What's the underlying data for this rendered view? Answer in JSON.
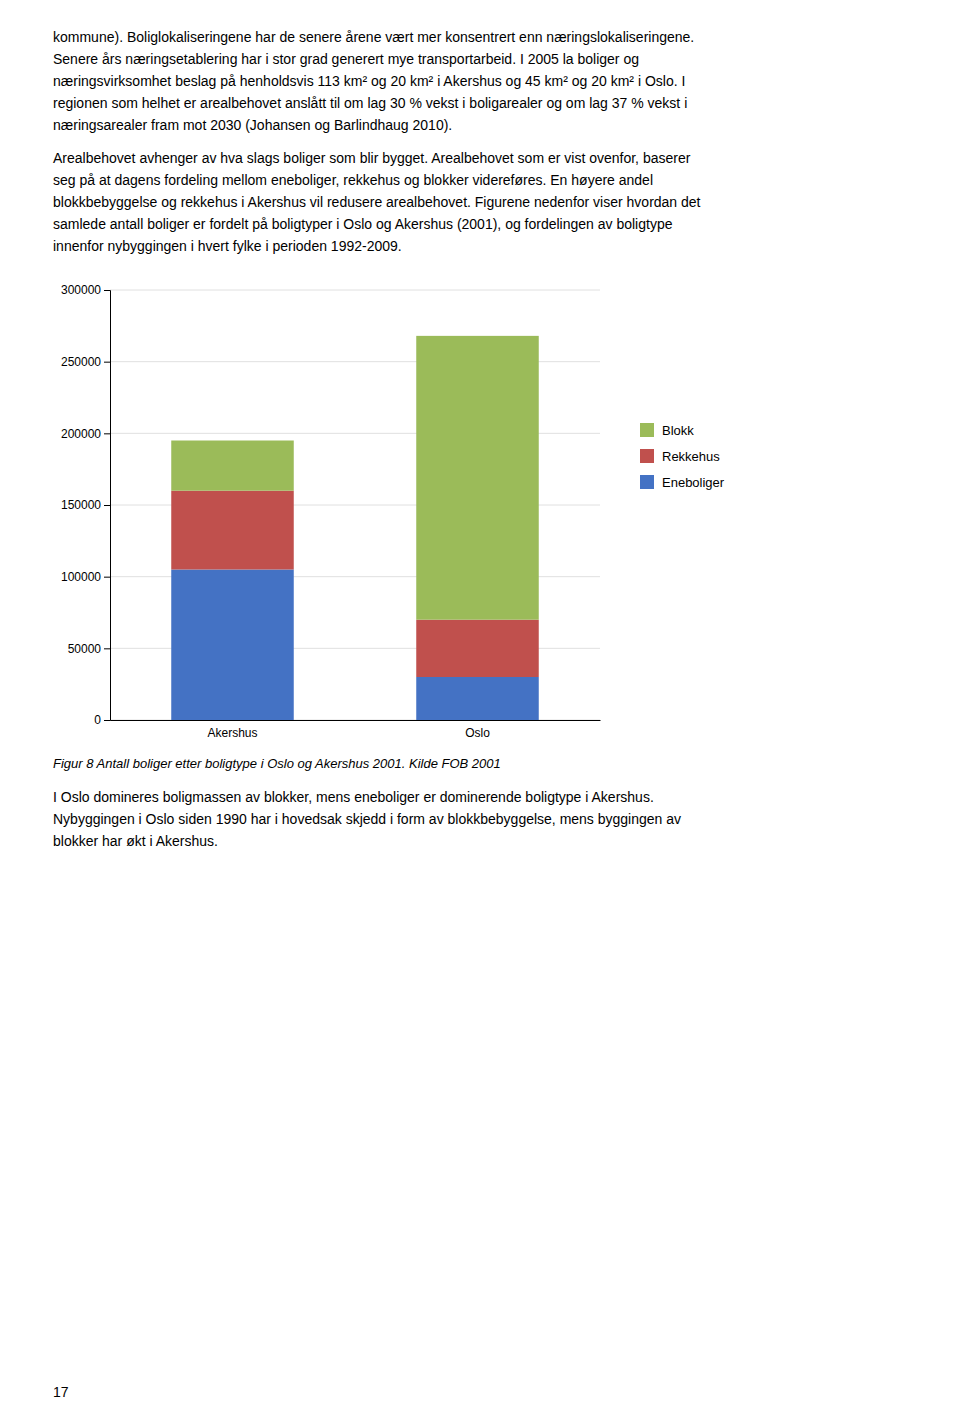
{
  "chart_data": {
    "type": "bar",
    "stacked": true,
    "categories": [
      "Akershus",
      "Oslo"
    ],
    "series": [
      {
        "name": "Eneboliger",
        "color": "#4472C4",
        "values": [
          105000,
          30000
        ]
      },
      {
        "name": "Rekkehus",
        "color": "#C0504D",
        "values": [
          55000,
          40000
        ]
      },
      {
        "name": "Blokk",
        "color": "#9BBB59",
        "values": [
          35000,
          198000
        ]
      }
    ],
    "ylim": [
      0,
      300000
    ],
    "yticks": [
      0,
      50000,
      100000,
      150000,
      200000,
      250000,
      300000
    ],
    "grid": true,
    "legend": "right"
  },
  "text_above": [
    [
      "kommune).  Boliglokaliseringene har de senere årene vært mer konsentrert enn næringslokaliseringene.",
      "Senere års næringsetablering har i stor grad generert mye transportarbeid. I 2005 la boliger og",
      "næringsvirksomhet beslag på henholdsvis 113 km² og 20 km² i Akershus og 45 km² og 20 km² i Oslo. I",
      "regionen som helhet er arealbehovet anslått til om lag 30 % vekst i boligarealer og om lag 37 % vekst i",
      "næringsarealer fram mot 2030 (Johansen og Barlindhaug 2010)."
    ],
    [
      "Arealbehovet avhenger av hva slags boliger som blir bygget. Arealbehovet som er vist ovenfor, baserer",
      "seg på at dagens fordeling mellom eneboliger, rekkehus og blokker videreføres. En høyere andel",
      "blokkbebyggelse og rekkehus i Akershus vil redusere arealbehovet. Figurene nedenfor viser hvordan det",
      "samlede antall boliger er fordelt på boligtyper i Oslo og Akershus (2001), og fordelingen av boligtype",
      "innenfor nybyggingen i hvert fylke i perioden 1992-2009."
    ]
  ],
  "caption": "Figur 8 Antall boliger etter boligtype i Oslo og Akershus 2001. Kilde FOB 2001",
  "text_below": [
    "I Oslo domineres boligmassen av blokker, mens eneboliger er dominerende boligtype i Akershus.",
    "Nybyggingen i Oslo siden 1990 har i hovedsak skjedd i form av blokkbebyggelse, mens byggingen av",
    "blokker har økt i Akershus."
  ],
  "page_number": "17"
}
